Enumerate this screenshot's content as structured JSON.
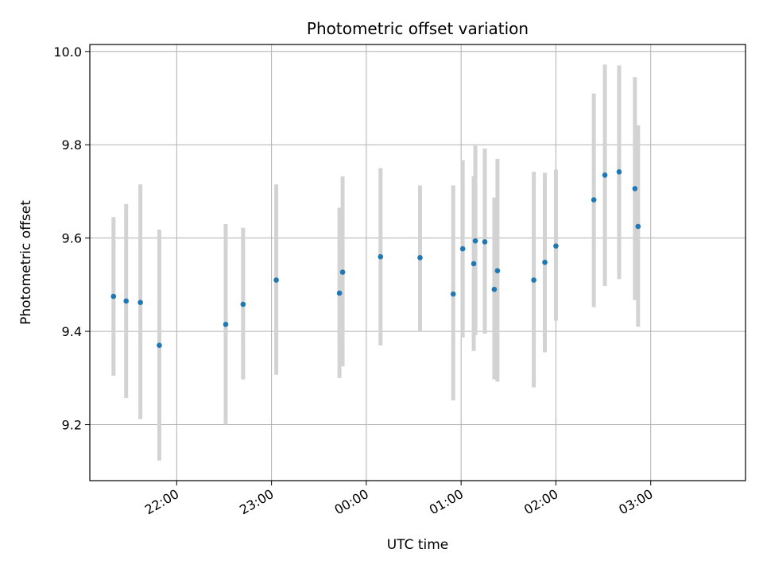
{
  "chart_data": {
    "type": "scatter",
    "title": "Photometric offset variation",
    "xlabel": "UTC time",
    "ylabel": "Photometric offset",
    "x_tick_labels": [
      "22:00",
      "23:00",
      "00:00",
      "01:00",
      "02:00",
      "03:00"
    ],
    "x_ticks": [
      "22:00",
      "23:00",
      "24:00",
      "25:00",
      "26:00",
      "27:00"
    ],
    "xlim": [
      "21:05",
      "28:00"
    ],
    "ylim": [
      9.08,
      10.015
    ],
    "y_ticks": [
      9.2,
      9.4,
      9.6,
      9.8,
      10.0
    ],
    "y_tick_labels": [
      "9.2",
      "9.4",
      "9.6",
      "9.8",
      "10.0"
    ],
    "grid": true,
    "marker_color": "#1f77b4",
    "errorbar_color": "#d3d3d3",
    "points": [
      {
        "t": "21:20",
        "y": 9.475,
        "lo": 9.305,
        "hi": 9.645
      },
      {
        "t": "21:28",
        "y": 9.465,
        "lo": 9.257,
        "hi": 9.673
      },
      {
        "t": "21:37",
        "y": 9.462,
        "lo": 9.212,
        "hi": 9.715
      },
      {
        "t": "21:49",
        "y": 9.37,
        "lo": 9.123,
        "hi": 9.618
      },
      {
        "t": "22:31",
        "y": 9.415,
        "lo": 9.2,
        "hi": 9.63
      },
      {
        "t": "22:42",
        "y": 9.458,
        "lo": 9.297,
        "hi": 9.622
      },
      {
        "t": "23:03",
        "y": 9.51,
        "lo": 9.307,
        "hi": 9.715
      },
      {
        "t": "23:43",
        "y": 9.482,
        "lo": 9.3,
        "hi": 9.665
      },
      {
        "t": "23:45",
        "y": 9.527,
        "lo": 9.325,
        "hi": 9.732
      },
      {
        "t": "24:09",
        "y": 9.56,
        "lo": 9.37,
        "hi": 9.75
      },
      {
        "t": "24:34",
        "y": 9.558,
        "lo": 9.4,
        "hi": 9.713
      },
      {
        "t": "24:55",
        "y": 9.48,
        "lo": 9.252,
        "hi": 9.713
      },
      {
        "t": "25:01",
        "y": 9.577,
        "lo": 9.387,
        "hi": 9.767
      },
      {
        "t": "25:08",
        "y": 9.545,
        "lo": 9.358,
        "hi": 9.733
      },
      {
        "t": "25:09",
        "y": 9.594,
        "lo": 9.392,
        "hi": 9.798
      },
      {
        "t": "25:15",
        "y": 9.592,
        "lo": 9.395,
        "hi": 9.792
      },
      {
        "t": "25:21",
        "y": 9.49,
        "lo": 9.297,
        "hi": 9.687
      },
      {
        "t": "25:23",
        "y": 9.53,
        "lo": 9.292,
        "hi": 9.77
      },
      {
        "t": "25:46",
        "y": 9.51,
        "lo": 9.28,
        "hi": 9.742
      },
      {
        "t": "25:53",
        "y": 9.548,
        "lo": 9.355,
        "hi": 9.74
      },
      {
        "t": "26:00",
        "y": 9.583,
        "lo": 9.423,
        "hi": 9.747
      },
      {
        "t": "26:24",
        "y": 9.682,
        "lo": 9.452,
        "hi": 9.91
      },
      {
        "t": "26:31",
        "y": 9.735,
        "lo": 9.497,
        "hi": 9.972
      },
      {
        "t": "26:40",
        "y": 9.742,
        "lo": 9.512,
        "hi": 9.97
      },
      {
        "t": "26:50",
        "y": 9.706,
        "lo": 9.467,
        "hi": 9.945
      },
      {
        "t": "26:52",
        "y": 9.625,
        "lo": 9.41,
        "hi": 9.842
      }
    ]
  }
}
